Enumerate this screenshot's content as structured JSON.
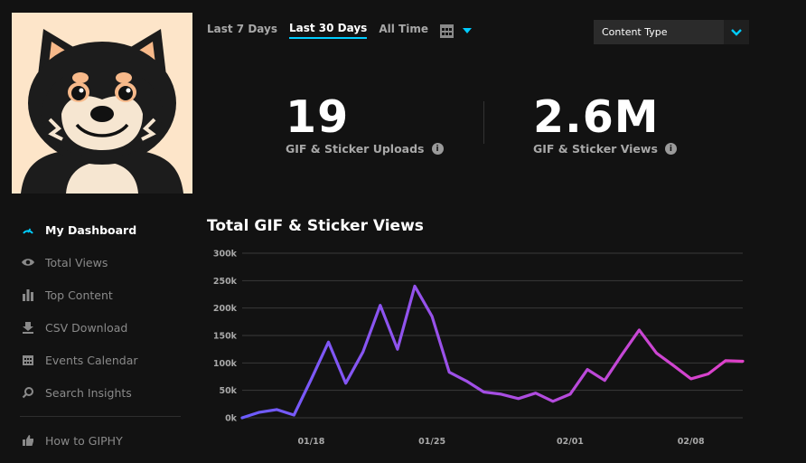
{
  "colors": {
    "background": "#121212",
    "accent": "#00ccff",
    "line_start": "#6b5cff",
    "line_end": "#e040c8"
  },
  "avatar": {
    "icon": "shiba-dog-avatar"
  },
  "sidebar": {
    "items": [
      {
        "label": "My Dashboard",
        "icon": "gauge-icon",
        "active": true
      },
      {
        "label": "Total Views",
        "icon": "eye-icon",
        "active": false
      },
      {
        "label": "Top Content",
        "icon": "bar-chart-icon",
        "active": false
      },
      {
        "label": "CSV Download",
        "icon": "download-icon",
        "active": false
      },
      {
        "label": "Events Calendar",
        "icon": "calendar-icon",
        "active": false
      },
      {
        "label": "Search Insights",
        "icon": "search-icon",
        "active": false
      }
    ],
    "secondary": [
      {
        "label": "How to GIPHY",
        "icon": "thumbs-up-icon"
      }
    ]
  },
  "range_tabs": [
    {
      "label": "Last 7 Days",
      "active": false
    },
    {
      "label": "Last 30 Days",
      "active": true
    },
    {
      "label": "All Time",
      "active": false
    }
  ],
  "content_type": {
    "label": "Content Type"
  },
  "stats": {
    "uploads": {
      "value": "19",
      "label": "GIF & Sticker Uploads"
    },
    "views": {
      "value": "2.6M",
      "label": "GIF & Sticker Views"
    }
  },
  "chart_data": {
    "type": "line",
    "title": "Total GIF & Sticker Views",
    "x_tick_labels": [
      "01/18",
      "01/25",
      "02/01",
      "02/08"
    ],
    "x_tick_indices": [
      4,
      11,
      19,
      26
    ],
    "y_ticks": [
      "0k",
      "50k",
      "100k",
      "150k",
      "200k",
      "250k",
      "300k"
    ],
    "ylim": [
      0,
      300000
    ],
    "grid": true,
    "series": [
      {
        "values": [
          0,
          10000,
          15000,
          5000,
          70000,
          138000,
          63000,
          120000,
          205000,
          125000,
          240000,
          185000,
          83000,
          67000,
          47000,
          43000,
          35000,
          45000,
          30000,
          43000,
          88000,
          68000,
          115000,
          160000,
          118000,
          95000,
          71000,
          80000,
          104000,
          103000
        ]
      }
    ]
  }
}
